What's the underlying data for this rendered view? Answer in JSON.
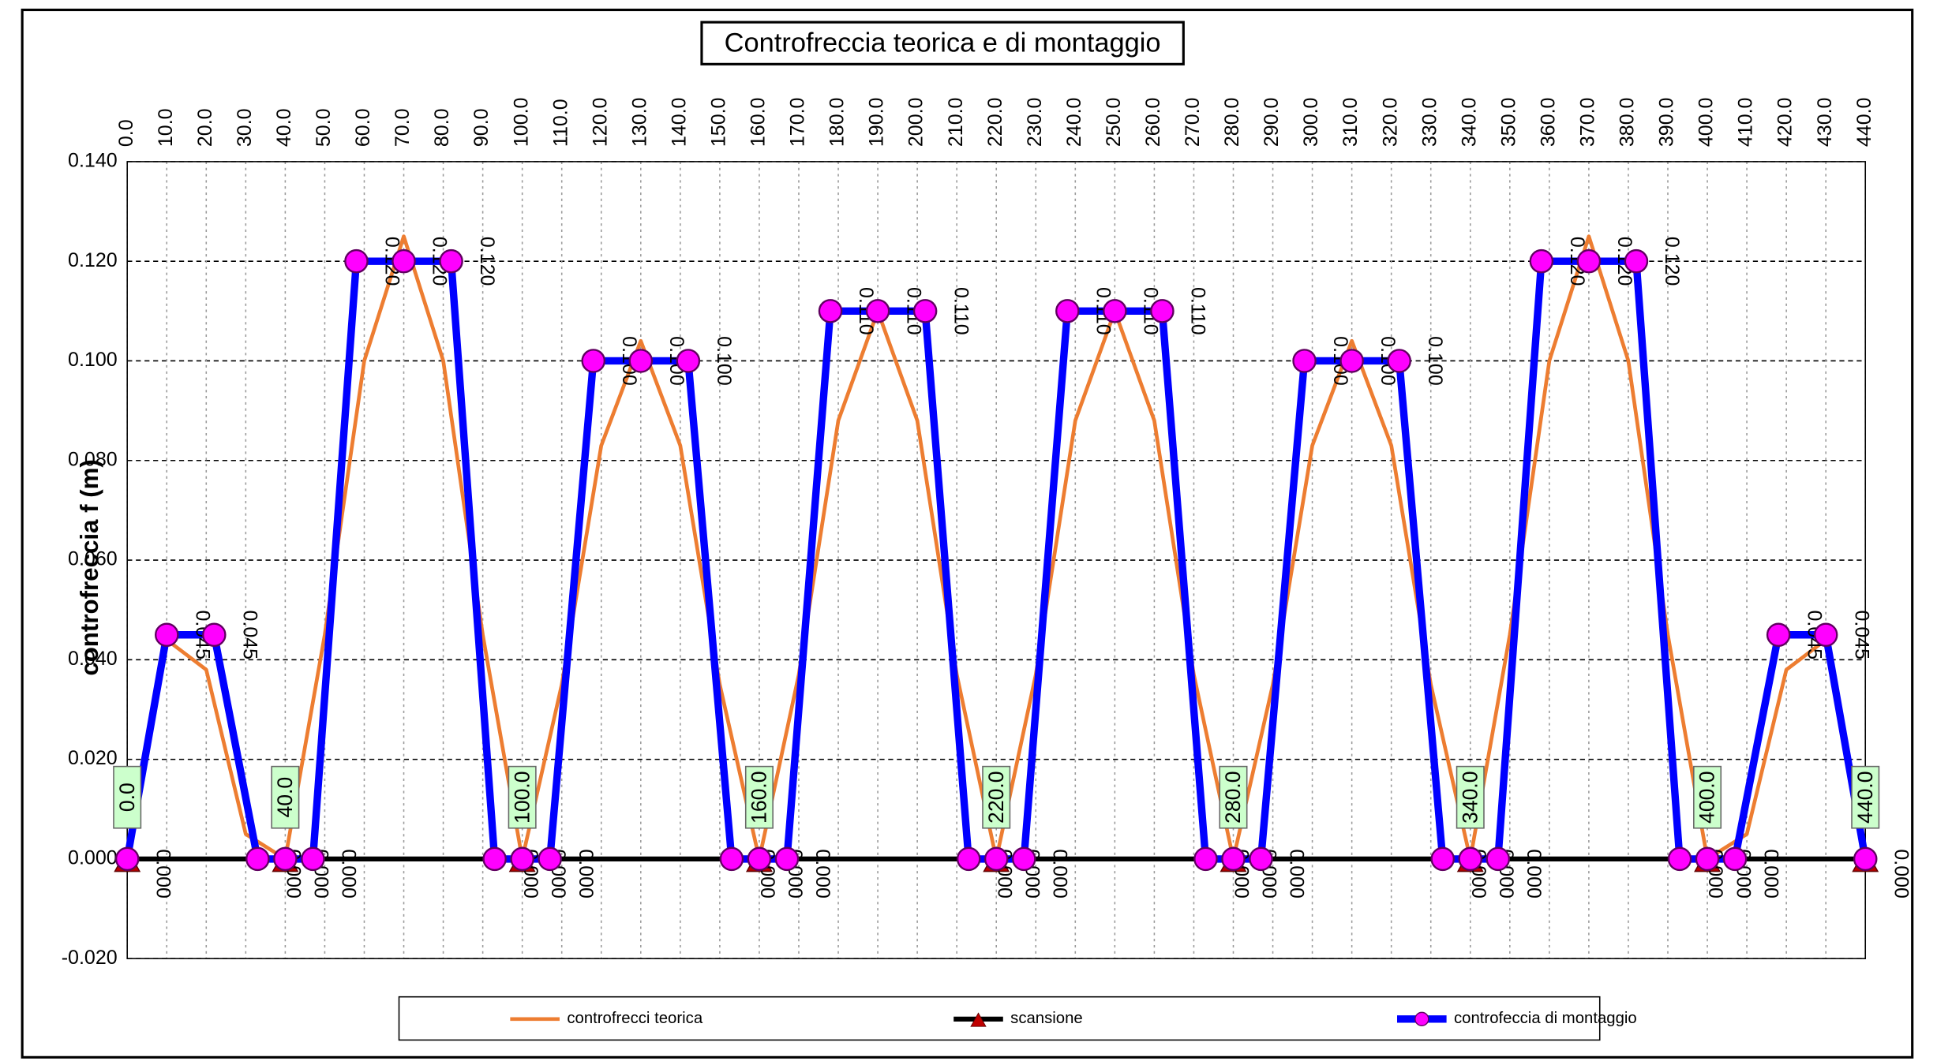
{
  "chart_data": {
    "type": "line",
    "title": "Controfreccia teorica e di montaggio",
    "y_label": "controfreccia f (m)",
    "xlim": [
      0,
      440
    ],
    "xticks": [
      {
        "value": 0,
        "label": "0.0"
      },
      {
        "value": 10,
        "label": "10.0"
      },
      {
        "value": 20,
        "label": "20.0"
      },
      {
        "value": 30,
        "label": "30.0"
      },
      {
        "value": 40,
        "label": "40.0"
      },
      {
        "value": 50,
        "label": "50.0"
      },
      {
        "value": 60,
        "label": "60.0"
      },
      {
        "value": 70,
        "label": "70.0"
      },
      {
        "value": 80,
        "label": "80.0"
      },
      {
        "value": 90,
        "label": "90.0"
      },
      {
        "value": 100,
        "label": "100.0"
      },
      {
        "value": 110,
        "label": "110.0"
      },
      {
        "value": 120,
        "label": "120.0"
      },
      {
        "value": 130,
        "label": "130.0"
      },
      {
        "value": 140,
        "label": "140.0"
      },
      {
        "value": 150,
        "label": "150.0"
      },
      {
        "value": 160,
        "label": "160.0"
      },
      {
        "value": 170,
        "label": "170.0"
      },
      {
        "value": 180,
        "label": "180.0"
      },
      {
        "value": 190,
        "label": "190.0"
      },
      {
        "value": 200,
        "label": "200.0"
      },
      {
        "value": 210,
        "label": "210.0"
      },
      {
        "value": 220,
        "label": "220.0"
      },
      {
        "value": 230,
        "label": "230.0"
      },
      {
        "value": 240,
        "label": "240.0"
      },
      {
        "value": 250,
        "label": "250.0"
      },
      {
        "value": 260,
        "label": "260.0"
      },
      {
        "value": 270,
        "label": "270.0"
      },
      {
        "value": 280,
        "label": "280.0"
      },
      {
        "value": 290,
        "label": "290.0"
      },
      {
        "value": 300,
        "label": "300.0"
      },
      {
        "value": 310,
        "label": "310.0"
      },
      {
        "value": 320,
        "label": "320.0"
      },
      {
        "value": 330,
        "label": "330.0"
      },
      {
        "value": 340,
        "label": "340.0"
      },
      {
        "value": 350,
        "label": "350.0"
      },
      {
        "value": 360,
        "label": "360.0"
      },
      {
        "value": 370,
        "label": "370.0"
      },
      {
        "value": 380,
        "label": "380.0"
      },
      {
        "value": 390,
        "label": "390.0"
      },
      {
        "value": 400,
        "label": "400.0"
      },
      {
        "value": 410,
        "label": "410.0"
      },
      {
        "value": 420,
        "label": "420.0"
      },
      {
        "value": 430,
        "label": "430.0"
      },
      {
        "value": 440,
        "label": "440.0"
      }
    ],
    "ylim": [
      -0.02,
      0.14
    ],
    "yticks": [
      {
        "value": -0.02,
        "label": "-0.020"
      },
      {
        "value": 0,
        "label": "0.000"
      },
      {
        "value": 0.02,
        "label": "0.020"
      },
      {
        "value": 0.04,
        "label": "0.040"
      },
      {
        "value": 0.06,
        "label": "0.060"
      },
      {
        "value": 0.08,
        "label": "0.080"
      },
      {
        "value": 0.1,
        "label": "0.100"
      },
      {
        "value": 0.12,
        "label": "0.120"
      },
      {
        "value": 0.14,
        "label": "0.140"
      }
    ],
    "grid": true,
    "legend": "bottom",
    "series": [
      {
        "name": "controfrecci teorica",
        "color": "#ed7d31",
        "marker": "none",
        "x": [
          0,
          10,
          20,
          30,
          40,
          50,
          60,
          70,
          80,
          90,
          100,
          110,
          120,
          130,
          140,
          150,
          160,
          170,
          180,
          190,
          200,
          210,
          220,
          230,
          240,
          250,
          260,
          270,
          280,
          290,
          300,
          310,
          320,
          330,
          340,
          350,
          360,
          370,
          380,
          390,
          400,
          410,
          420,
          430,
          440
        ],
        "values": [
          0,
          0.044,
          0.038,
          0.005,
          0,
          0.045,
          0.1,
          0.125,
          0.1,
          0.045,
          0,
          0.035,
          0.083,
          0.104,
          0.083,
          0.035,
          0,
          0.037,
          0.088,
          0.11,
          0.088,
          0.037,
          0,
          0.037,
          0.088,
          0.11,
          0.088,
          0.037,
          0,
          0.035,
          0.083,
          0.104,
          0.083,
          0.035,
          0,
          0.045,
          0.1,
          0.125,
          0.1,
          0.045,
          0,
          0.005,
          0.038,
          0.044,
          0
        ]
      },
      {
        "name": "scansione",
        "color": "#000000",
        "marker": "triangle",
        "marker_color": "#c00000",
        "x": [
          0,
          40,
          100,
          160,
          220,
          280,
          340,
          400,
          440
        ],
        "values": [
          0,
          0,
          0,
          0,
          0,
          0,
          0,
          0,
          0
        ],
        "point_labels": [
          "0.0",
          "40.0",
          "100.0",
          "160.0",
          "220.0",
          "280.0",
          "340.0",
          "400.0",
          "440.0"
        ]
      },
      {
        "name": "controfeccia di montaggio",
        "color": "#0000ff",
        "marker": "circle",
        "marker_color": "#ff00ff",
        "x": [
          0,
          10,
          22,
          33,
          40,
          47,
          58,
          70,
          82,
          93,
          100,
          107,
          118,
          130,
          142,
          153,
          160,
          167,
          178,
          190,
          202,
          213,
          220,
          227,
          238,
          250,
          262,
          273,
          280,
          287,
          298,
          310,
          322,
          333,
          340,
          347,
          358,
          370,
          382,
          393,
          400,
          407,
          418,
          430,
          440
        ],
        "values": [
          0,
          0.045,
          0.045,
          0,
          0,
          0,
          0.12,
          0.12,
          0.12,
          0,
          0,
          0,
          0.1,
          0.1,
          0.1,
          0,
          0,
          0,
          0.11,
          0.11,
          0.11,
          0,
          0,
          0,
          0.11,
          0.11,
          0.11,
          0,
          0,
          0,
          0.1,
          0.1,
          0.1,
          0,
          0,
          0,
          0.12,
          0.12,
          0.12,
          0,
          0,
          0,
          0.045,
          0.045,
          0
        ],
        "value_labels": [
          "0.000",
          "0.045",
          "0.045",
          "0.000",
          "0.000",
          "0.000",
          "0.120",
          "0.120",
          "0.120",
          "0.000",
          "0.000",
          "0.000",
          "0.100",
          "0.100",
          "0.100",
          "0.000",
          "0.000",
          "0.000",
          "0.110",
          "0.110",
          "0.110",
          "0.000",
          "0.000",
          "0.000",
          "0.110",
          "0.110",
          "0.110",
          "0.000",
          "0.000",
          "0.000",
          "0.100",
          "0.100",
          "0.100",
          "0.000",
          "0.000",
          "0.000",
          "0.120",
          "0.120",
          "0.120",
          "0.000",
          "0.000",
          "0.000",
          "0.045",
          "0.045",
          "0.000"
        ]
      }
    ]
  }
}
